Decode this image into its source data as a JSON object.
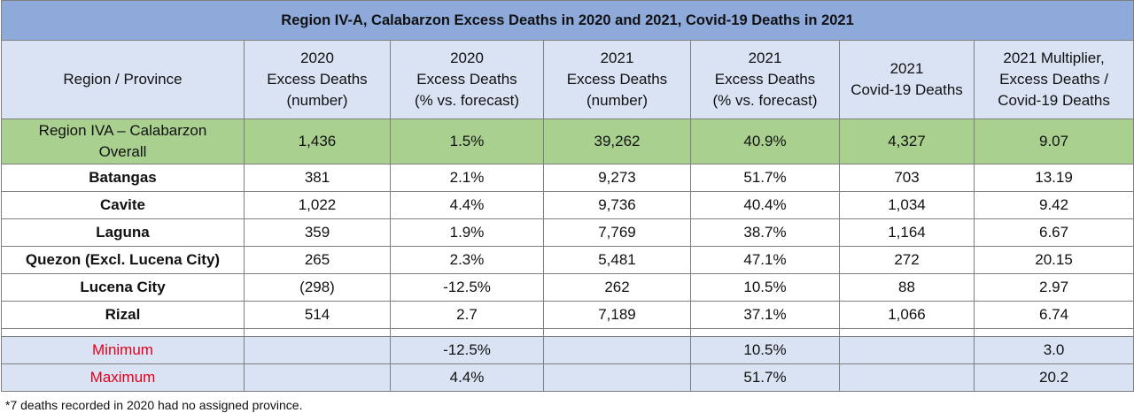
{
  "title": "Region IV-A, Calabarzon  Excess Deaths in 2020 and 2021, Covid-19 Deaths in 2021",
  "headers": [
    [
      "Region / Province"
    ],
    [
      "2020",
      "Excess Deaths",
      "(number)"
    ],
    [
      "2020",
      "Excess Deaths",
      "(% vs. forecast)"
    ],
    [
      "2021",
      "Excess Deaths",
      "(number)"
    ],
    [
      "2021",
      "Excess Deaths",
      "(% vs. forecast)"
    ],
    [
      "2021",
      "Covid-19 Deaths"
    ],
    [
      "2021 Multiplier,",
      "Excess Deaths /",
      "Covid-19 Deaths"
    ]
  ],
  "overall": {
    "name_lines": [
      "Region IVA – Calabarzon",
      "Overall"
    ],
    "values": [
      "1,436",
      "1.5%",
      "39,262",
      "40.9%",
      "4,327",
      "9.07"
    ]
  },
  "provinces": [
    {
      "name": "Batangas",
      "values": [
        "381",
        "2.1%",
        "9,273",
        "51.7%",
        "703",
        "13.19"
      ]
    },
    {
      "name": "Cavite",
      "values": [
        "1,022",
        "4.4%",
        "9,736",
        "40.4%",
        "1,034",
        "9.42"
      ]
    },
    {
      "name": "Laguna",
      "values": [
        "359",
        "1.9%",
        "7,769",
        "38.7%",
        "1,164",
        "6.67"
      ]
    },
    {
      "name": "Quezon  (Excl. Lucena City)",
      "values": [
        "265",
        "2.3%",
        "5,481",
        "47.1%",
        "272",
        "20.15"
      ]
    },
    {
      "name": "Lucena City",
      "values": [
        "(298)",
        "-12.5%",
        "262",
        "10.5%",
        "88",
        "2.97"
      ]
    },
    {
      "name": "Rizal",
      "values": [
        "514",
        "2.7",
        "7,189",
        "37.1%",
        "1,066",
        "6.74"
      ]
    }
  ],
  "stats": [
    {
      "label": "Minimum",
      "pct_2020": "-12.5%",
      "pct_2021": "10.5%",
      "multiplier": "3.0"
    },
    {
      "label": "Maximum",
      "pct_2020": "4.4%",
      "pct_2021": "51.7%",
      "multiplier": "20.2"
    }
  ],
  "footnote": "*7 deaths recorded in 2020 had no assigned province.",
  "colors": {
    "title_bg": "#8eaadb",
    "header_bg": "#dae3f3",
    "overall_bg": "#a9d08e",
    "stat_label": "#e3001b"
  }
}
